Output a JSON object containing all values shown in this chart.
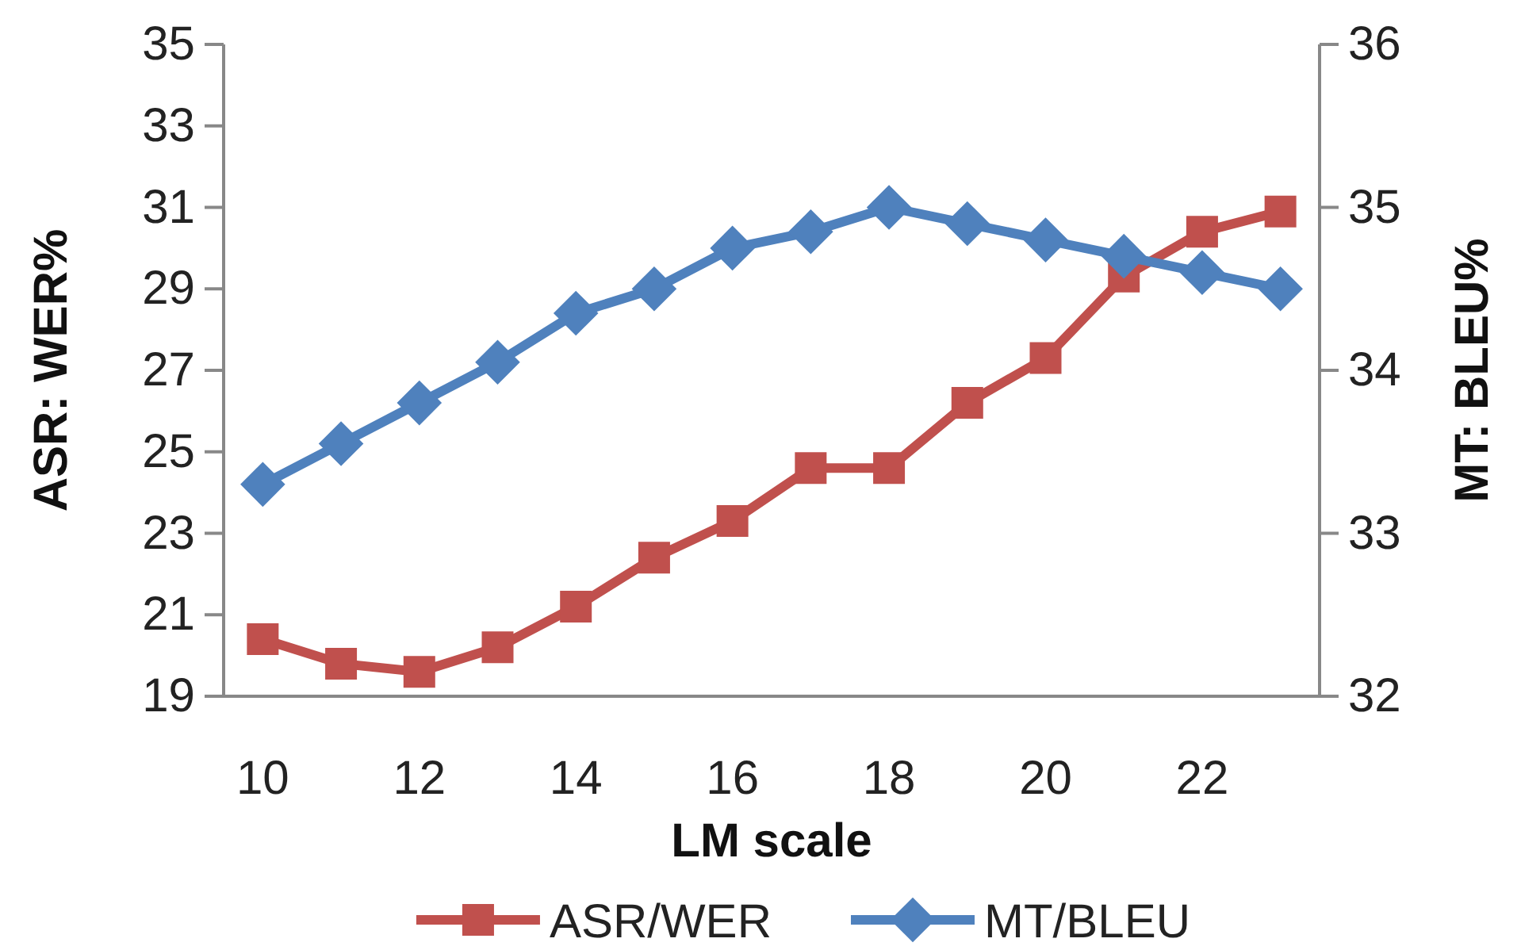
{
  "chart_data": {
    "type": "line",
    "xlabel": "LM scale",
    "ylabel": "ASR: WER%",
    "y2label": "MT: BLEU%",
    "x": [
      10,
      11,
      12,
      13,
      14,
      15,
      16,
      17,
      18,
      19,
      20,
      21,
      22,
      23
    ],
    "xlim": [
      9.5,
      23.5
    ],
    "xticks": [
      10,
      12,
      14,
      16,
      18,
      20,
      22
    ],
    "ylim": [
      19,
      35
    ],
    "yticks": [
      19,
      21,
      23,
      25,
      27,
      29,
      31,
      33,
      35
    ],
    "y2lim": [
      32,
      36
    ],
    "y2ticks": [
      32,
      33,
      34,
      35,
      36
    ],
    "series": [
      {
        "name": "ASR/WER",
        "color": "#c0504d",
        "marker": "square",
        "values": [
          20.4,
          19.8,
          19.6,
          20.2,
          21.2,
          22.4,
          23.3,
          24.6,
          24.6,
          26.2,
          27.3,
          29.3,
          30.4,
          30.9
        ]
      },
      {
        "name": "MT/BLEU",
        "color": "#4f81bd",
        "marker": "diamond",
        "axis": "y2",
        "values": [
          33.3,
          33.55,
          33.8,
          34.05,
          34.35,
          34.5,
          34.75,
          34.85,
          35.0,
          34.9,
          34.8,
          34.7,
          34.6,
          34.5
        ]
      }
    ],
    "grid": false,
    "legend": "bottom"
  }
}
